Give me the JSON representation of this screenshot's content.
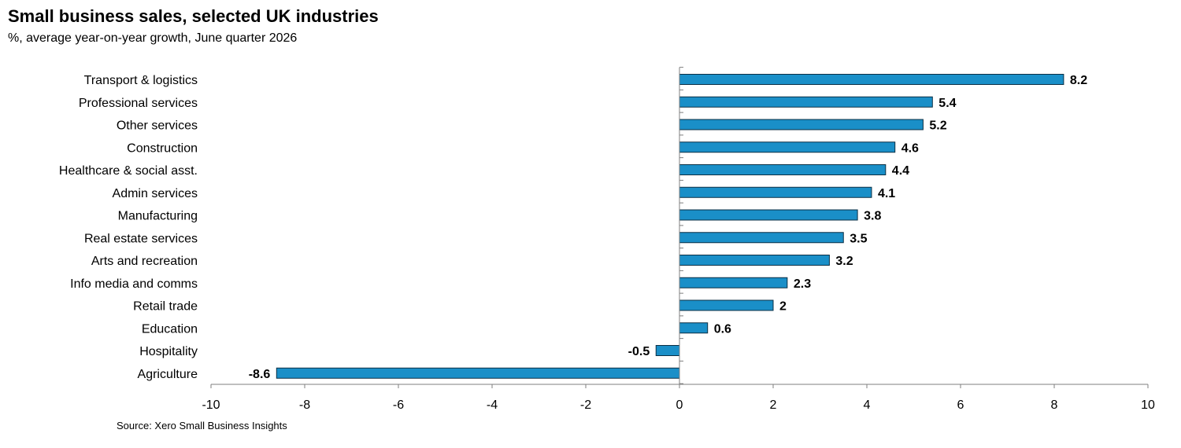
{
  "chart_data": {
    "type": "bar",
    "orientation": "horizontal",
    "title": "Small business sales, selected UK industries",
    "subtitle": "%, average year-on-year growth, June quarter 2026",
    "source": "Source: Xero Small Business Insights",
    "categories": [
      "Transport & logistics",
      "Professional services",
      "Other services",
      "Construction",
      "Healthcare & social asst.",
      "Admin services",
      "Manufacturing",
      "Real estate services",
      "Arts and recreation",
      "Info media and comms",
      "Retail trade",
      "Education",
      "Hospitality",
      "Agriculture"
    ],
    "values": [
      8.2,
      5.4,
      5.2,
      4.6,
      4.4,
      4.1,
      3.8,
      3.5,
      3.2,
      2.3,
      2,
      0.6,
      -0.5,
      -8.6
    ],
    "value_labels": [
      "8.2",
      "5.4",
      "5.2",
      "4.6",
      "4.4",
      "4.1",
      "3.8",
      "3.5",
      "3.2",
      "2.3",
      "2",
      "0.6",
      "-0.5",
      "-8.6"
    ],
    "xlim": [
      -10,
      10
    ],
    "xticks": [
      -10,
      -8,
      -6,
      -4,
      -2,
      0,
      2,
      4,
      6,
      8,
      10
    ],
    "grid": false,
    "legend": "none",
    "bar_color": "#1a8fc8"
  }
}
